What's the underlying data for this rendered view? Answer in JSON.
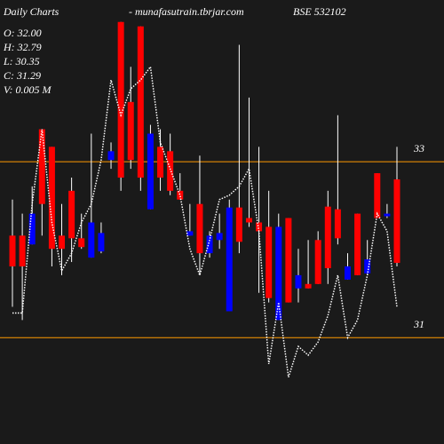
{
  "chart_data": {
    "type": "candlestick",
    "title": "Daily Charts",
    "subtitle": "- munafasutrain.tbrjar.com",
    "symbol": "BSE 532102",
    "info": [
      "O: 32.00",
      "H: 32.79",
      "L: 30.35",
      "C: 31.29",
      "V: 0.005 M"
    ],
    "categories": [
      null,
      null,
      null,
      null,
      null,
      null,
      null,
      null,
      null,
      null,
      null,
      null,
      null,
      null,
      null,
      null,
      null,
      null,
      null,
      null,
      null,
      null,
      null,
      null,
      null,
      null,
      null,
      null,
      null,
      null,
      null,
      null,
      null,
      null,
      null,
      null,
      null,
      null,
      null,
      null
    ],
    "open": [
      32.16,
      32.16,
      32.06,
      33.37,
      33.17,
      32.16,
      32.67,
      32.13,
      31.91,
      31.98,
      33.02,
      34.59,
      33.68,
      34.54,
      32.46,
      33.17,
      33.12,
      32.67,
      32.16,
      32.52,
      31.96,
      32.11,
      31.3,
      32.48,
      32.36,
      32.31,
      32.26,
      31.2,
      32.36,
      31.56,
      31.61,
      32.11,
      32.49,
      32.46,
      31.66,
      32.41,
      31.73,
      32.87,
      32.38,
      32.8
    ],
    "high": [
      32.57,
      32.41,
      32.72,
      33.37,
      33.17,
      32.52,
      32.82,
      32.41,
      33.32,
      32.31,
      33.22,
      34.59,
      34.08,
      34.54,
      33.42,
      33.37,
      33.32,
      32.87,
      32.52,
      33.07,
      32.21,
      32.41,
      32.57,
      34.33,
      33.73,
      33.17,
      32.67,
      32.41,
      32.36,
      32.01,
      32.11,
      32.21,
      32.67,
      33.53,
      31.96,
      32.41,
      32.11,
      32.87,
      32.52,
      33.17
    ],
    "low": [
      31.35,
      31.2,
      32.06,
      32.16,
      31.81,
      31.71,
      31.86,
      32.01,
      31.91,
      31.96,
      32.92,
      32.67,
      32.92,
      32.67,
      32.46,
      32.67,
      32.62,
      32.57,
      32.16,
      31.71,
      31.91,
      32.01,
      31.3,
      31.96,
      32.26,
      31.51,
      31.4,
      31.2,
      31.4,
      31.4,
      31.56,
      31.61,
      31.61,
      32.06,
      31.66,
      31.71,
      31.71,
      32.36,
      32.36,
      31.81
    ],
    "close": [
      31.81,
      31.81,
      32.41,
      32.52,
      32.01,
      32.01,
      32.13,
      32.03,
      32.31,
      32.19,
      33.12,
      32.82,
      33.02,
      32.82,
      33.32,
      32.82,
      32.67,
      32.57,
      32.21,
      31.96,
      32.16,
      32.19,
      32.48,
      32.09,
      32.31,
      32.21,
      31.45,
      32.26,
      31.4,
      31.71,
      31.56,
      31.61,
      31.79,
      32.13,
      31.81,
      31.71,
      31.89,
      32.36,
      32.41,
      31.85
    ],
    "line": {
      "color": "#ffffff",
      "values": [
        31.28,
        31.28,
        32.52,
        33.37,
        32.31,
        31.76,
        31.96,
        32.31,
        32.52,
        33.02,
        33.93,
        33.53,
        33.83,
        33.93,
        34.08,
        33.22,
        32.92,
        32.62,
        32.01,
        31.71,
        32.11,
        32.57,
        32.62,
        32.72,
        32.92,
        32.21,
        30.7,
        31.4,
        30.55,
        30.9,
        30.8,
        30.95,
        31.25,
        31.71,
        31.0,
        31.2,
        31.71,
        32.41,
        32.21,
        31.35
      ]
    },
    "up_color": "#0000ff",
    "down_color": "#ff0000",
    "wick_color": "#ffffff",
    "ylim": [
      29.79,
      34.84
    ],
    "yticks": [
      33,
      31
    ],
    "grid": true,
    "grid_color": "#ff9900"
  }
}
